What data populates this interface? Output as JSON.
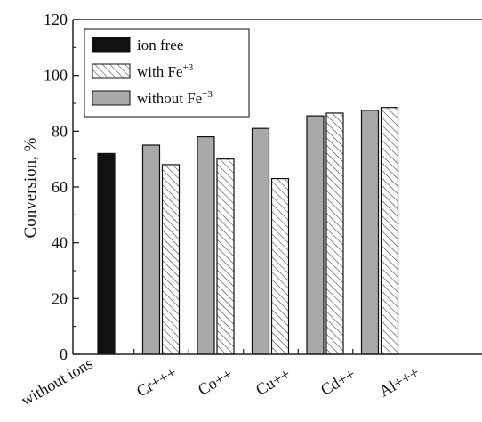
{
  "chart_data": {
    "type": "bar",
    "categories": [
      "without ions",
      "Cr+++",
      "Co++",
      "Cu++",
      "Cd++",
      "Al+++"
    ],
    "series": [
      {
        "name": "ion free",
        "pattern": "solid",
        "color": "#111111",
        "values": [
          72,
          null,
          null,
          null,
          null,
          null
        ]
      },
      {
        "name": "without Fe+3",
        "pattern": "solid",
        "color": "#a9a9a9",
        "values": [
          null,
          75,
          78,
          81,
          85.5,
          87.5
        ]
      },
      {
        "name": "with Fe+3",
        "pattern": "hatched",
        "color": "#ffffff",
        "values": [
          null,
          68,
          70,
          63,
          86.5,
          88.5
        ]
      }
    ],
    "ylabel": "Conversion, %",
    "xlabel": "",
    "ylim": [
      0,
      120
    ],
    "yticks": [
      0,
      20,
      40,
      60,
      80,
      100,
      120
    ],
    "grid": false,
    "legend": {
      "position": "top-left",
      "entries": [
        {
          "text": "ion free",
          "sup": ""
        },
        {
          "text": "with Fe",
          "sup": "+3"
        },
        {
          "text": "without Fe",
          "sup": "+3"
        }
      ]
    }
  }
}
